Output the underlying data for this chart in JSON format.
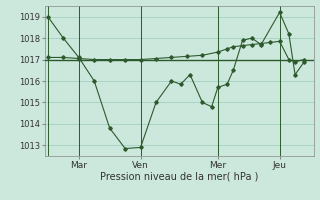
{
  "xlabel": "Pression niveau de la mer( hPa )",
  "bg_color": "#cce8dc",
  "grid_color": "#99ccbb",
  "line_color": "#2d5a2d",
  "ylim": [
    1012.5,
    1019.5
  ],
  "day_labels": [
    "Mar",
    "Ven",
    "Mer",
    "Jeu"
  ],
  "day_positions": [
    1,
    3,
    5.5,
    7.5
  ],
  "flat_line_y": 1017.0,
  "series1_x": [
    0,
    0.5,
    1.0,
    1.5,
    2.0,
    2.5,
    3.0,
    3.5,
    4.0,
    4.3,
    4.6,
    5.0,
    5.3,
    5.5,
    5.8,
    6.0,
    6.3,
    6.6,
    6.9,
    7.5,
    7.8,
    8.0,
    8.3
  ],
  "series1_y": [
    1019.0,
    1018.0,
    1017.1,
    1016.0,
    1013.8,
    1012.85,
    1012.9,
    1015.0,
    1016.0,
    1015.85,
    1016.3,
    1015.0,
    1014.8,
    1015.7,
    1015.85,
    1016.5,
    1017.9,
    1018.0,
    1017.7,
    1019.2,
    1018.2,
    1016.3,
    1016.9
  ],
  "series2_x": [
    0,
    0.5,
    1.0,
    1.5,
    2.0,
    2.5,
    3.0,
    3.5,
    4.0,
    4.5,
    5.0,
    5.5,
    5.8,
    6.0,
    6.3,
    6.6,
    6.9,
    7.2,
    7.5,
    7.8,
    8.0,
    8.3
  ],
  "series2_y": [
    1017.1,
    1017.1,
    1017.05,
    1017.0,
    1017.0,
    1017.0,
    1017.0,
    1017.05,
    1017.1,
    1017.15,
    1017.2,
    1017.35,
    1017.5,
    1017.6,
    1017.65,
    1017.7,
    1017.75,
    1017.8,
    1017.85,
    1017.0,
    1016.9,
    1017.0
  ],
  "vline_x": [
    0,
    1.0,
    3.0,
    5.5,
    7.5
  ],
  "xlim": [
    -0.1,
    8.6
  ],
  "yticks": [
    1013,
    1014,
    1015,
    1016,
    1017,
    1018,
    1019
  ]
}
